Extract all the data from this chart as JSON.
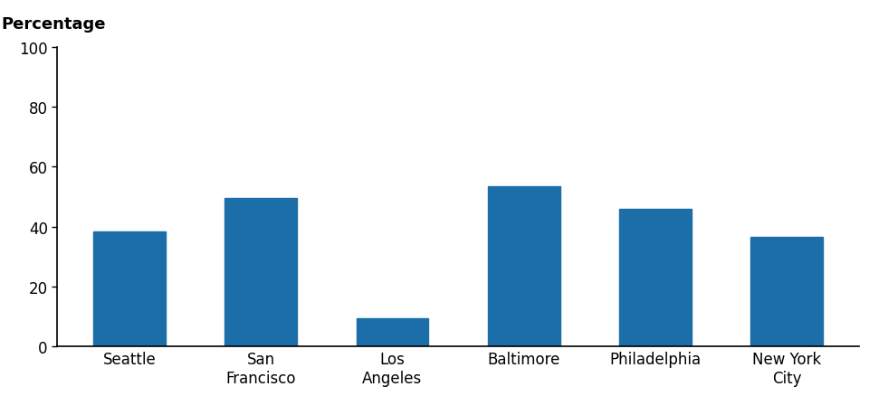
{
  "categories": [
    "Seattle",
    "San\nFrancisco",
    "Los\nAngeles",
    "Baltimore",
    "Philadelphia",
    "New York\nCity"
  ],
  "values": [
    38.5,
    49.5,
    9.5,
    53.5,
    46.0,
    36.5
  ],
  "bar_color": "#1B6EA8",
  "ylabel": "Percentage",
  "ylim": [
    0,
    100
  ],
  "yticks": [
    0,
    20,
    40,
    60,
    80,
    100
  ],
  "bar_width": 0.55,
  "background_color": "#ffffff",
  "ylabel_fontsize": 13,
  "tick_fontsize": 12,
  "xlabel_fontsize": 12
}
